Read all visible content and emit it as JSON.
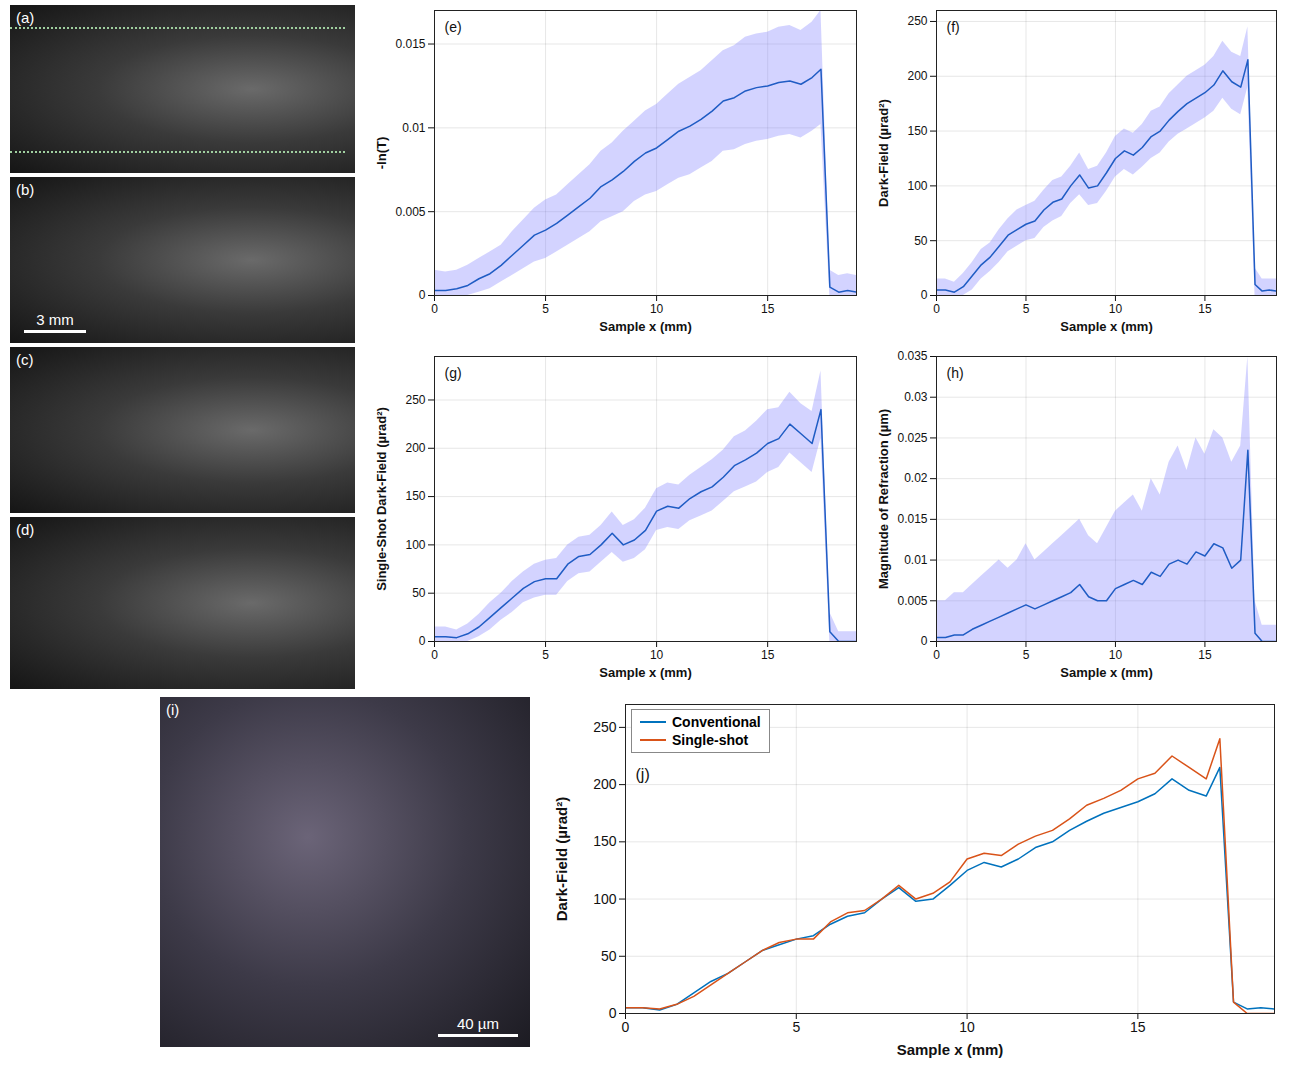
{
  "chart_data": [
    {
      "type": "image",
      "label": "(a)"
    },
    {
      "type": "image",
      "label": "(b)",
      "scale_bar": "3 mm"
    },
    {
      "type": "image",
      "label": "(c)"
    },
    {
      "type": "image",
      "label": "(d)"
    },
    {
      "type": "line",
      "label": "(e)",
      "xlabel": "Sample x (mm)",
      "ylabel": "-ln(T)",
      "xlim": [
        0,
        19
      ],
      "xticks": [
        0,
        5,
        10,
        15
      ],
      "ylim": [
        0,
        0.017
      ],
      "yticks": [
        0,
        0.005,
        0.01,
        0.015
      ],
      "grid": true,
      "color": "#1f5cc4",
      "x": [
        0,
        0.5,
        1,
        1.5,
        2,
        2.5,
        3,
        3.5,
        4,
        4.5,
        5,
        5.5,
        6,
        6.5,
        7,
        7.5,
        8,
        8.5,
        9,
        9.5,
        10,
        10.5,
        11,
        11.5,
        12,
        12.5,
        13,
        13.5,
        14,
        14.5,
        15,
        15.5,
        16,
        16.5,
        17,
        17.4,
        17.8,
        18.2,
        18.6,
        19
      ],
      "values": [
        0.0003,
        0.0003,
        0.0004,
        0.0006,
        0.001,
        0.0013,
        0.0018,
        0.0024,
        0.003,
        0.0036,
        0.0039,
        0.0043,
        0.0048,
        0.0053,
        0.0058,
        0.0065,
        0.0069,
        0.0074,
        0.008,
        0.0085,
        0.0088,
        0.0093,
        0.0098,
        0.0101,
        0.0105,
        0.011,
        0.0116,
        0.0118,
        0.0122,
        0.0124,
        0.0125,
        0.0127,
        0.0128,
        0.0126,
        0.013,
        0.0135,
        0.0005,
        0.0002,
        0.0003,
        0.0002
      ],
      "lower": [
        0,
        0,
        0,
        0,
        0.0002,
        0.0004,
        0.0008,
        0.0012,
        0.0016,
        0.002,
        0.0022,
        0.0026,
        0.003,
        0.0034,
        0.0038,
        0.0044,
        0.0047,
        0.005,
        0.0056,
        0.006,
        0.0062,
        0.0066,
        0.007,
        0.0072,
        0.0076,
        0.008,
        0.0086,
        0.0087,
        0.009,
        0.0092,
        0.0093,
        0.0095,
        0.0096,
        0.0094,
        0.0098,
        0.0102,
        0,
        0,
        0,
        0
      ],
      "upper": [
        0.0015,
        0.0014,
        0.0015,
        0.0018,
        0.0022,
        0.0026,
        0.003,
        0.0038,
        0.0045,
        0.0052,
        0.0057,
        0.006,
        0.0066,
        0.0072,
        0.0078,
        0.0086,
        0.0091,
        0.0098,
        0.0104,
        0.011,
        0.0114,
        0.012,
        0.0126,
        0.013,
        0.0134,
        0.014,
        0.0146,
        0.0149,
        0.0154,
        0.0156,
        0.0157,
        0.016,
        0.0161,
        0.0158,
        0.0163,
        0.017,
        0.0015,
        0.0012,
        0.0013,
        0.0012
      ]
    },
    {
      "type": "line",
      "label": "(f)",
      "xlabel": "Sample x (mm)",
      "ylabel": "Dark-Field (µrad²)",
      "xlim": [
        0,
        19
      ],
      "xticks": [
        0,
        5,
        10,
        15
      ],
      "ylim": [
        0,
        260
      ],
      "yticks": [
        0,
        50,
        100,
        150,
        200,
        250
      ],
      "grid": true,
      "color": "#1f5cc4",
      "x": [
        0,
        0.5,
        1,
        1.5,
        2,
        2.5,
        3,
        3.5,
        4,
        4.5,
        5,
        5.5,
        6,
        6.5,
        7,
        7.5,
        8,
        8.5,
        9,
        9.5,
        10,
        10.5,
        11,
        11.5,
        12,
        12.5,
        13,
        13.5,
        14,
        14.5,
        15,
        15.5,
        16,
        16.5,
        17,
        17.4,
        17.8,
        18.2,
        18.6,
        19
      ],
      "values": [
        5,
        5,
        3,
        8,
        18,
        28,
        35,
        45,
        55,
        60,
        65,
        68,
        78,
        85,
        88,
        100,
        110,
        98,
        100,
        112,
        125,
        132,
        128,
        135,
        145,
        150,
        160,
        168,
        175,
        180,
        185,
        192,
        205,
        195,
        190,
        215,
        10,
        4,
        5,
        4
      ],
      "lower": [
        0,
        0,
        0,
        0,
        5,
        15,
        22,
        30,
        40,
        45,
        50,
        52,
        62,
        68,
        72,
        84,
        92,
        82,
        84,
        95,
        108,
        115,
        110,
        117,
        125,
        130,
        140,
        147,
        152,
        157,
        162,
        168,
        180,
        170,
        165,
        190,
        0,
        0,
        0,
        0
      ],
      "upper": [
        15,
        15,
        12,
        20,
        30,
        42,
        48,
        60,
        70,
        78,
        82,
        86,
        96,
        105,
        108,
        118,
        130,
        115,
        118,
        130,
        145,
        152,
        148,
        156,
        168,
        172,
        184,
        192,
        200,
        205,
        210,
        218,
        232,
        222,
        218,
        245,
        25,
        15,
        15,
        15
      ]
    },
    {
      "type": "line",
      "label": "(g)",
      "xlabel": "Sample x (mm)",
      "ylabel": "Single-Shot Dark-Field (µrad²)",
      "xlim": [
        0,
        19
      ],
      "xticks": [
        0,
        5,
        10,
        15
      ],
      "ylim": [
        0,
        295
      ],
      "yticks": [
        0,
        50,
        100,
        150,
        200,
        250
      ],
      "grid": true,
      "color": "#1f5cc4",
      "x": [
        0,
        0.5,
        1,
        1.5,
        2,
        2.5,
        3,
        3.5,
        4,
        4.5,
        5,
        5.5,
        6,
        6.5,
        7,
        7.5,
        8,
        8.5,
        9,
        9.5,
        10,
        10.5,
        11,
        11.5,
        12,
        12.5,
        13,
        13.5,
        14,
        14.5,
        15,
        15.5,
        16,
        16.5,
        17,
        17.4,
        17.8,
        18.2,
        18.6,
        19
      ],
      "values": [
        5,
        5,
        4,
        8,
        15,
        25,
        35,
        45,
        55,
        62,
        65,
        65,
        80,
        88,
        90,
        100,
        112,
        100,
        105,
        115,
        135,
        140,
        138,
        148,
        155,
        160,
        170,
        182,
        188,
        195,
        205,
        210,
        225,
        215,
        205,
        240,
        10,
        0,
        0,
        0
      ],
      "lower": [
        0,
        0,
        0,
        0,
        5,
        12,
        22,
        30,
        40,
        45,
        48,
        48,
        62,
        70,
        72,
        82,
        92,
        82,
        86,
        95,
        115,
        118,
        116,
        125,
        130,
        135,
        145,
        155,
        160,
        165,
        175,
        180,
        195,
        185,
        175,
        210,
        0,
        0,
        0,
        0
      ],
      "upper": [
        15,
        15,
        12,
        18,
        28,
        40,
        50,
        62,
        72,
        80,
        84,
        86,
        100,
        108,
        110,
        120,
        134,
        120,
        126,
        138,
        158,
        164,
        162,
        172,
        180,
        188,
        198,
        212,
        218,
        228,
        240,
        242,
        258,
        246,
        238,
        280,
        30,
        10,
        10,
        10
      ]
    },
    {
      "type": "line",
      "label": "(h)",
      "xlabel": "Sample x (mm)",
      "ylabel": "Magnitude of Refraction (µm)",
      "xlim": [
        0,
        19
      ],
      "xticks": [
        0,
        5,
        10,
        15
      ],
      "ylim": [
        0,
        0.035
      ],
      "yticks": [
        0,
        0.005,
        0.01,
        0.015,
        0.02,
        0.025,
        0.03,
        0.035
      ],
      "grid": true,
      "color": "#1f5cc4",
      "x": [
        0,
        0.5,
        1,
        1.5,
        2,
        2.5,
        3,
        3.5,
        4,
        4.5,
        5,
        5.5,
        6,
        6.5,
        7,
        7.5,
        8,
        8.5,
        9,
        9.5,
        10,
        10.5,
        11,
        11.5,
        12,
        12.5,
        13,
        13.5,
        14,
        14.5,
        15,
        15.5,
        16,
        16.5,
        17,
        17.4,
        17.8,
        18.2,
        18.6,
        19
      ],
      "values": [
        0.0005,
        0.0005,
        0.0008,
        0.0008,
        0.0015,
        0.002,
        0.0025,
        0.003,
        0.0035,
        0.004,
        0.0045,
        0.004,
        0.0045,
        0.005,
        0.0055,
        0.006,
        0.007,
        0.0055,
        0.005,
        0.005,
        0.0065,
        0.007,
        0.0075,
        0.007,
        0.0085,
        0.008,
        0.0095,
        0.01,
        0.0095,
        0.011,
        0.0105,
        0.012,
        0.0115,
        0.009,
        0.01,
        0.0235,
        0.001,
        0,
        0,
        0
      ],
      "lower": [
        0,
        0,
        0,
        0,
        0,
        0,
        0,
        0,
        0,
        0,
        0,
        0,
        0,
        0,
        0,
        0,
        0,
        0,
        0,
        0,
        0,
        0,
        0,
        0,
        0,
        0,
        0,
        0,
        0,
        0,
        0,
        0,
        0,
        0,
        0,
        0,
        0,
        0,
        0,
        0
      ],
      "upper": [
        0.005,
        0.005,
        0.006,
        0.006,
        0.007,
        0.008,
        0.009,
        0.01,
        0.009,
        0.01,
        0.012,
        0.01,
        0.011,
        0.012,
        0.013,
        0.014,
        0.015,
        0.013,
        0.012,
        0.014,
        0.016,
        0.017,
        0.018,
        0.016,
        0.02,
        0.018,
        0.022,
        0.024,
        0.021,
        0.025,
        0.023,
        0.026,
        0.025,
        0.022,
        0.024,
        0.035,
        0.005,
        0.002,
        0.002,
        0.002
      ]
    },
    {
      "type": "image",
      "label": "(i)",
      "scale_bar": "40 µm"
    },
    {
      "type": "line",
      "label": "(j)",
      "xlabel": "Sample x (mm)",
      "ylabel": "Dark-Field (µrad²)",
      "xlim": [
        0,
        19
      ],
      "xticks": [
        0,
        5,
        10,
        15
      ],
      "ylim": [
        0,
        270
      ],
      "yticks": [
        0,
        50,
        100,
        150,
        200,
        250
      ],
      "grid": true,
      "legend": "northwest",
      "x": [
        0,
        0.5,
        1,
        1.5,
        2,
        2.5,
        3,
        3.5,
        4,
        4.5,
        5,
        5.5,
        6,
        6.5,
        7,
        7.5,
        8,
        8.5,
        9,
        9.5,
        10,
        10.5,
        11,
        11.5,
        12,
        12.5,
        13,
        13.5,
        14,
        14.5,
        15,
        15.5,
        16,
        16.5,
        17,
        17.4,
        17.8,
        18.2,
        18.6,
        19
      ],
      "series": [
        {
          "name": "Conventional",
          "color": "#0072bd",
          "values": [
            5,
            5,
            3,
            8,
            18,
            28,
            35,
            45,
            55,
            60,
            65,
            68,
            78,
            85,
            88,
            100,
            110,
            98,
            100,
            112,
            125,
            132,
            128,
            135,
            145,
            150,
            160,
            168,
            175,
            180,
            185,
            192,
            205,
            195,
            190,
            215,
            10,
            4,
            5,
            4
          ]
        },
        {
          "name": "Single-shot",
          "color": "#d95319",
          "values": [
            5,
            5,
            4,
            8,
            15,
            25,
            35,
            45,
            55,
            62,
            65,
            65,
            80,
            88,
            90,
            100,
            112,
            100,
            105,
            115,
            135,
            140,
            138,
            148,
            155,
            160,
            170,
            182,
            188,
            195,
            205,
            210,
            225,
            215,
            205,
            240,
            10,
            0,
            0,
            0
          ]
        }
      ]
    }
  ]
}
